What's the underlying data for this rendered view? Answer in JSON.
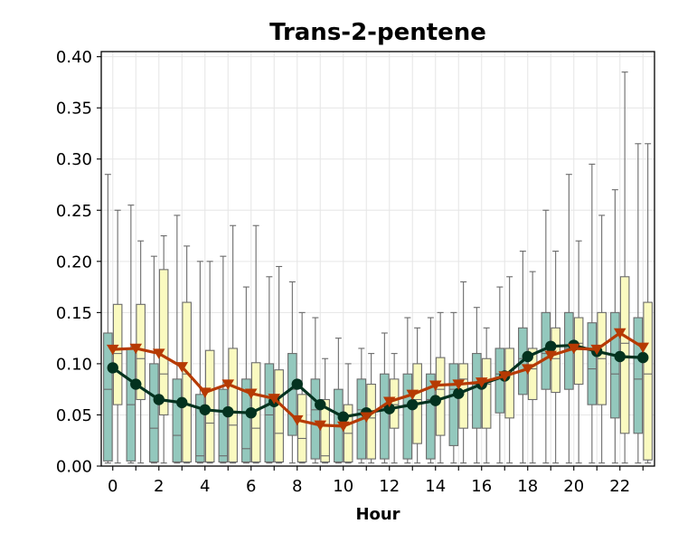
{
  "chart_data": {
    "type": "box",
    "title": "Trans-2-pentene",
    "xlabel": "Hour",
    "ylabel": "",
    "xlim": [
      -0.5,
      23.5
    ],
    "ylim": [
      0,
      0.405
    ],
    "xticks": [
      0,
      2,
      4,
      6,
      8,
      10,
      12,
      14,
      16,
      18,
      20,
      22
    ],
    "xtick_labels": [
      "0",
      "2",
      "4",
      "6",
      "8",
      "10",
      "12",
      "14",
      "16",
      "18",
      "20",
      "22"
    ],
    "yticks": [
      0,
      0.05,
      0.1,
      0.15,
      0.2,
      0.25,
      0.3,
      0.35,
      0.4
    ],
    "ytick_labels": [
      "0.00",
      "0.05",
      "0.10",
      "0.15",
      "0.20",
      "0.25",
      "0.30",
      "0.35",
      "0.40"
    ],
    "grid": true,
    "legend": "none",
    "hours": [
      0,
      1,
      2,
      3,
      4,
      5,
      6,
      7,
      8,
      9,
      10,
      11,
      12,
      13,
      14,
      15,
      16,
      17,
      18,
      19,
      20,
      21,
      22,
      23
    ],
    "series": [
      {
        "color": "#93c8bd",
        "mean_line_color": "#03321f",
        "marker": "circle",
        "boxes": [
          {
            "whislo": 0.003,
            "q1": 0.005,
            "med": 0.075,
            "q3": 0.13,
            "whishi": 0.285
          },
          {
            "whislo": 0.003,
            "q1": 0.005,
            "med": 0.06,
            "q3": 0.115,
            "whishi": 0.255
          },
          {
            "whislo": 0.003,
            "q1": 0.004,
            "med": 0.037,
            "q3": 0.1,
            "whishi": 0.205
          },
          {
            "whislo": 0.003,
            "q1": 0.004,
            "med": 0.03,
            "q3": 0.085,
            "whishi": 0.245
          },
          {
            "whislo": 0.003,
            "q1": 0.004,
            "med": 0.01,
            "q3": 0.07,
            "whishi": 0.2
          },
          {
            "whislo": 0.003,
            "q1": 0.004,
            "med": 0.01,
            "q3": 0.075,
            "whishi": 0.205
          },
          {
            "whislo": 0.003,
            "q1": 0.004,
            "med": 0.017,
            "q3": 0.085,
            "whishi": 0.175
          },
          {
            "whislo": 0.003,
            "q1": 0.004,
            "med": 0.05,
            "q3": 0.1,
            "whishi": 0.185
          },
          {
            "whislo": 0.003,
            "q1": 0.03,
            "med": 0.075,
            "q3": 0.11,
            "whishi": 0.18
          },
          {
            "whislo": 0.003,
            "q1": 0.007,
            "med": 0.055,
            "q3": 0.085,
            "whishi": 0.145
          },
          {
            "whislo": 0.003,
            "q1": 0.004,
            "med": 0.04,
            "q3": 0.075,
            "whishi": 0.125
          },
          {
            "whislo": 0.003,
            "q1": 0.007,
            "med": 0.055,
            "q3": 0.085,
            "whishi": 0.115
          },
          {
            "whislo": 0.003,
            "q1": 0.007,
            "med": 0.055,
            "q3": 0.09,
            "whishi": 0.13
          },
          {
            "whislo": 0.003,
            "q1": 0.007,
            "med": 0.06,
            "q3": 0.09,
            "whishi": 0.145
          },
          {
            "whislo": 0.003,
            "q1": 0.007,
            "med": 0.065,
            "q3": 0.09,
            "whishi": 0.145
          },
          {
            "whislo": 0.003,
            "q1": 0.02,
            "med": 0.075,
            "q3": 0.1,
            "whishi": 0.15
          },
          {
            "whislo": 0.003,
            "q1": 0.037,
            "med": 0.08,
            "q3": 0.11,
            "whishi": 0.155
          },
          {
            "whislo": 0.003,
            "q1": 0.052,
            "med": 0.09,
            "q3": 0.115,
            "whishi": 0.175
          },
          {
            "whislo": 0.003,
            "q1": 0.07,
            "med": 0.105,
            "q3": 0.135,
            "whishi": 0.21
          },
          {
            "whislo": 0.003,
            "q1": 0.075,
            "med": 0.11,
            "q3": 0.15,
            "whishi": 0.25
          },
          {
            "whislo": 0.003,
            "q1": 0.075,
            "med": 0.115,
            "q3": 0.15,
            "whishi": 0.285
          },
          {
            "whislo": 0.003,
            "q1": 0.06,
            "med": 0.095,
            "q3": 0.14,
            "whishi": 0.295
          },
          {
            "whislo": 0.003,
            "q1": 0.047,
            "med": 0.09,
            "q3": 0.15,
            "whishi": 0.27
          },
          {
            "whislo": 0.003,
            "q1": 0.032,
            "med": 0.085,
            "q3": 0.145,
            "whishi": 0.315
          }
        ],
        "means": [
          0.096,
          0.08,
          0.065,
          0.062,
          0.055,
          0.053,
          0.052,
          0.063,
          0.08,
          0.06,
          0.048,
          0.052,
          0.056,
          0.06,
          0.064,
          0.071,
          0.08,
          0.088,
          0.107,
          0.117,
          0.118,
          0.112,
          0.107,
          0.106
        ]
      },
      {
        "color": "#fafac0",
        "mean_line_color": "#b63a03",
        "marker": "triangle-down",
        "boxes": [
          {
            "whislo": 0.003,
            "q1": 0.06,
            "med": 0.11,
            "q3": 0.158,
            "whishi": 0.25
          },
          {
            "whislo": 0.003,
            "q1": 0.065,
            "med": 0.105,
            "q3": 0.158,
            "whishi": 0.22
          },
          {
            "whislo": 0.003,
            "q1": 0.05,
            "med": 0.09,
            "q3": 0.192,
            "whishi": 0.225
          },
          {
            "whislo": 0.003,
            "q1": 0.004,
            "med": 0.09,
            "q3": 0.16,
            "whishi": 0.215
          },
          {
            "whislo": 0.003,
            "q1": 0.004,
            "med": 0.042,
            "q3": 0.113,
            "whishi": 0.2
          },
          {
            "whislo": 0.003,
            "q1": 0.004,
            "med": 0.04,
            "q3": 0.115,
            "whishi": 0.235
          },
          {
            "whislo": 0.003,
            "q1": 0.004,
            "med": 0.037,
            "q3": 0.101,
            "whishi": 0.235
          },
          {
            "whislo": 0.003,
            "q1": 0.004,
            "med": 0.032,
            "q3": 0.094,
            "whishi": 0.195
          },
          {
            "whislo": 0.003,
            "q1": 0.004,
            "med": 0.027,
            "q3": 0.07,
            "whishi": 0.15
          },
          {
            "whislo": 0.003,
            "q1": 0.004,
            "med": 0.01,
            "q3": 0.065,
            "whishi": 0.105
          },
          {
            "whislo": 0.003,
            "q1": 0.004,
            "med": 0.032,
            "q3": 0.06,
            "whishi": 0.1
          },
          {
            "whislo": 0.003,
            "q1": 0.007,
            "med": 0.047,
            "q3": 0.08,
            "whishi": 0.11
          },
          {
            "whislo": 0.003,
            "q1": 0.037,
            "med": 0.06,
            "q3": 0.085,
            "whishi": 0.11
          },
          {
            "whislo": 0.003,
            "q1": 0.022,
            "med": 0.065,
            "q3": 0.1,
            "whishi": 0.135
          },
          {
            "whislo": 0.003,
            "q1": 0.03,
            "med": 0.075,
            "q3": 0.106,
            "whishi": 0.15
          },
          {
            "whislo": 0.003,
            "q1": 0.037,
            "med": 0.085,
            "q3": 0.1,
            "whishi": 0.18
          },
          {
            "whislo": 0.003,
            "q1": 0.037,
            "med": 0.08,
            "q3": 0.105,
            "whishi": 0.135
          },
          {
            "whislo": 0.003,
            "q1": 0.047,
            "med": 0.09,
            "q3": 0.115,
            "whishi": 0.185
          },
          {
            "whislo": 0.003,
            "q1": 0.065,
            "med": 0.095,
            "q3": 0.115,
            "whishi": 0.19
          },
          {
            "whislo": 0.003,
            "q1": 0.072,
            "med": 0.105,
            "q3": 0.135,
            "whishi": 0.21
          },
          {
            "whislo": 0.003,
            "q1": 0.08,
            "med": 0.12,
            "q3": 0.145,
            "whishi": 0.22
          },
          {
            "whislo": 0.003,
            "q1": 0.06,
            "med": 0.105,
            "q3": 0.15,
            "whishi": 0.245
          },
          {
            "whislo": 0.003,
            "q1": 0.032,
            "med": 0.12,
            "q3": 0.185,
            "whishi": 0.385
          },
          {
            "whislo": 0.003,
            "q1": 0.006,
            "med": 0.09,
            "q3": 0.16,
            "whishi": 0.315
          }
        ],
        "means": [
          0.114,
          0.115,
          0.11,
          0.097,
          0.072,
          0.08,
          0.071,
          0.066,
          0.045,
          0.04,
          0.039,
          0.048,
          0.063,
          0.07,
          0.079,
          0.08,
          0.082,
          0.088,
          0.095,
          0.108,
          0.115,
          0.114,
          0.13,
          0.116
        ]
      }
    ]
  }
}
